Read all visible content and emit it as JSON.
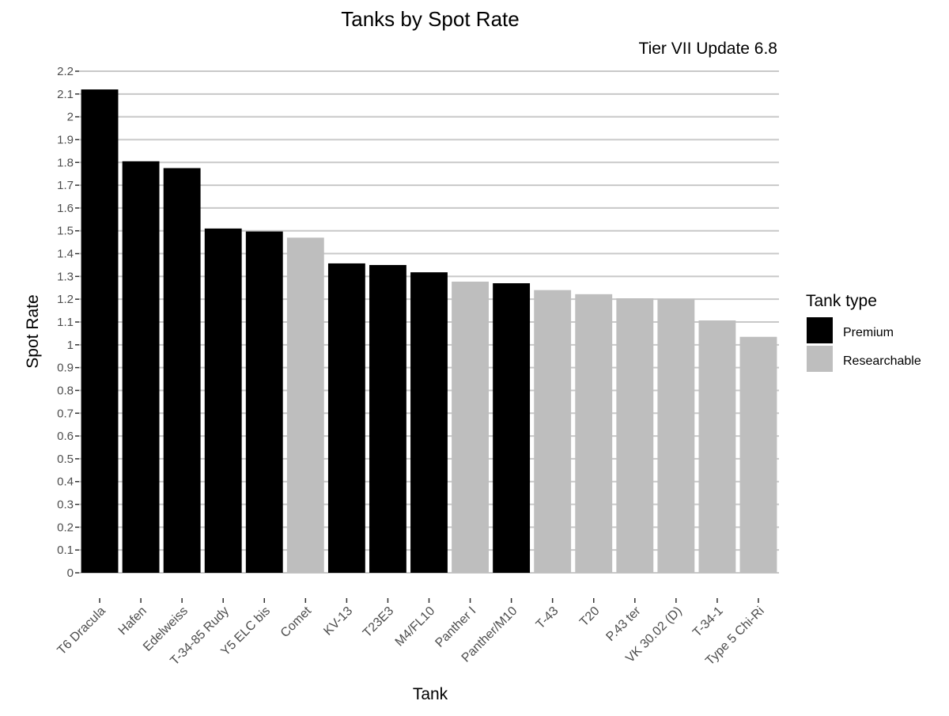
{
  "chart_data": {
    "type": "bar",
    "title": "Tanks by Spot Rate",
    "subtitle": "Tier VII Update 6.8",
    "xlabel": "Tank",
    "ylabel": "Spot Rate",
    "ylim": [
      0,
      2.2
    ],
    "ytick_step": 0.1,
    "grid": true,
    "legend": {
      "title": "Tank type",
      "placement": "right",
      "entries": [
        {
          "name": "Premium",
          "color": "#000000"
        },
        {
          "name": "Researchable",
          "color": "#bebebe"
        }
      ]
    },
    "categories": [
      "T6 Dracula",
      "Hafen",
      "Edelweiss",
      "T-34-85 Rudy",
      "Y5 ELC bis",
      "Comet",
      "KV-13",
      "T23E3",
      "M4/FL10",
      "Panther I",
      "Panther/M10",
      "T-43",
      "T20",
      "P.43 ter",
      "VK 30.02 (D)",
      "T-34-1",
      "Type 5 Chi-Ri"
    ],
    "values": [
      2.12,
      1.805,
      1.775,
      1.51,
      1.497,
      1.47,
      1.357,
      1.35,
      1.318,
      1.277,
      1.27,
      1.24,
      1.222,
      1.204,
      1.202,
      1.107,
      1.035
    ],
    "types": [
      "Premium",
      "Premium",
      "Premium",
      "Premium",
      "Premium",
      "Researchable",
      "Premium",
      "Premium",
      "Premium",
      "Researchable",
      "Premium",
      "Researchable",
      "Researchable",
      "Researchable",
      "Researchable",
      "Researchable",
      "Researchable"
    ]
  }
}
